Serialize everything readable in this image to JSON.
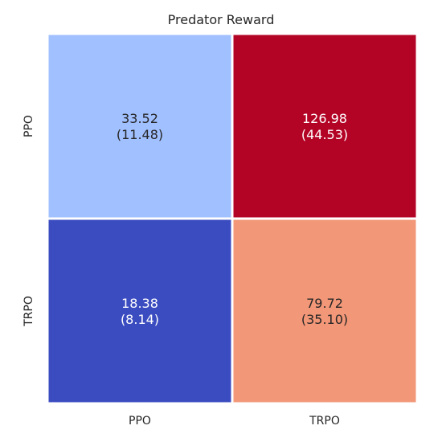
{
  "chart_data": {
    "type": "heatmap",
    "title": "Predator Reward",
    "xlabel": "",
    "ylabel": "",
    "x_categories": [
      "PPO",
      "TRPO"
    ],
    "y_categories": [
      "PPO",
      "TRPO"
    ],
    "colormap": "coolwarm",
    "cells": [
      {
        "row": 0,
        "col": 0,
        "value": 33.52,
        "std": 11.48,
        "label": "33.52\n(11.48)",
        "color": "#a1c0ff",
        "text_color": "#262626"
      },
      {
        "row": 0,
        "col": 1,
        "value": 126.98,
        "std": 44.53,
        "label": "126.98\n(44.53)",
        "color": "#b40426",
        "text_color": "#ffffff"
      },
      {
        "row": 1,
        "col": 0,
        "value": 18.38,
        "std": 8.14,
        "label": "18.38\n(8.14)",
        "color": "#3b4cc0",
        "text_color": "#ffffff"
      },
      {
        "row": 1,
        "col": 1,
        "value": 79.72,
        "std": 35.1,
        "label": "79.72\n(35.10)",
        "color": "#f29778",
        "text_color": "#262626"
      }
    ],
    "colorbar": false,
    "grid": false
  }
}
